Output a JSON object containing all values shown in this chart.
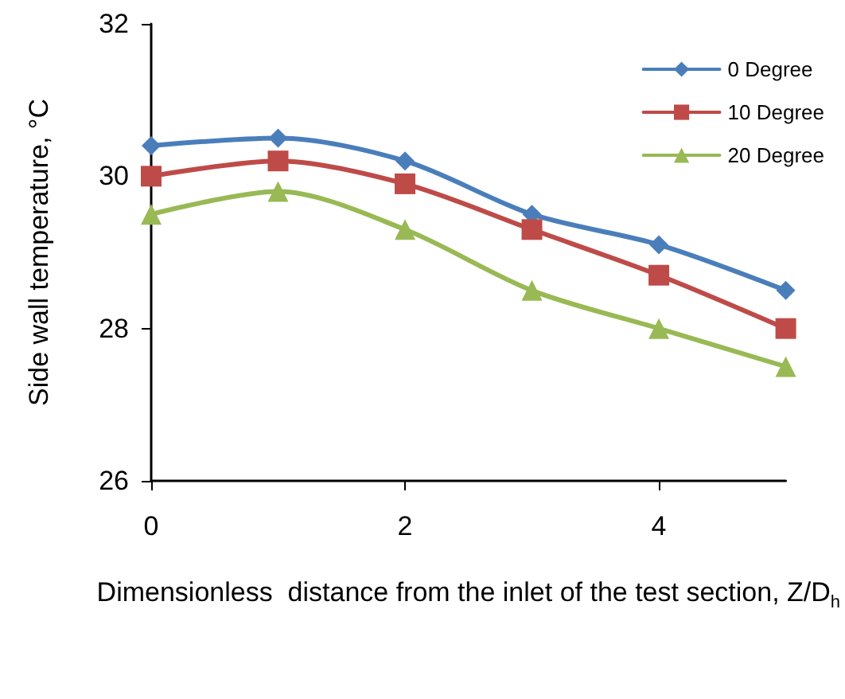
{
  "chart_data": {
    "type": "line",
    "xlabel": "Dimensionless  distance from the inlet of the test section, Z/D$_{h}$",
    "ylabel": "Side wall temperature, °C",
    "x": [
      0,
      1,
      2,
      3,
      4,
      5
    ],
    "xlim": [
      0,
      5
    ],
    "xticks": [
      0,
      2,
      4
    ],
    "ylim": [
      26,
      32
    ],
    "yticks": [
      26,
      28,
      30,
      32
    ],
    "grid": false,
    "legend": "top right",
    "series": [
      {
        "name": "0 Degree",
        "color": "#4a7ebb",
        "marker": "diamond",
        "values": [
          30.4,
          30.5,
          30.2,
          29.5,
          29.1,
          28.5
        ]
      },
      {
        "name": "10 Degree",
        "color": "#be4b48",
        "marker": "square",
        "values": [
          30.0,
          30.2,
          29.9,
          29.3,
          28.7,
          28.0
        ]
      },
      {
        "name": "20 Degree",
        "color": "#98b954",
        "marker": "triangle",
        "values": [
          29.5,
          29.8,
          29.3,
          28.5,
          28.0,
          27.5
        ]
      }
    ]
  }
}
